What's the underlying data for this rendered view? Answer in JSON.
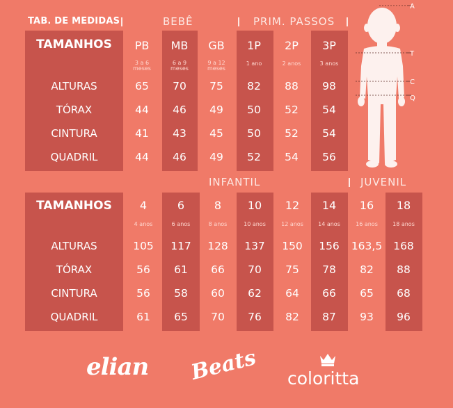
{
  "table1": {
    "title": "TAB. DE MEDIDAS",
    "group_labels": [
      "BEBÊ",
      "PRIM. PASSOS"
    ],
    "header_label": "TAMANHOS",
    "sizes": [
      "PB",
      "MB",
      "GB",
      "1P",
      "2P",
      "3P"
    ],
    "ages": [
      "3 a 6 meses",
      "6 a 9 meses",
      "9 a 12 meses",
      "1 ano",
      "2 anos",
      "3 anos"
    ],
    "row_labels": [
      "ALTURAS",
      "TÓRAX",
      "CINTURA",
      "QUADRIL"
    ],
    "rows": [
      [
        "65",
        "70",
        "75",
        "82",
        "88",
        "98"
      ],
      [
        "44",
        "46",
        "49",
        "50",
        "52",
        "54"
      ],
      [
        "41",
        "43",
        "45",
        "50",
        "52",
        "54"
      ],
      [
        "44",
        "46",
        "49",
        "52",
        "54",
        "56"
      ]
    ]
  },
  "table2": {
    "group_labels": [
      "INFANTIL",
      "JUVENIL"
    ],
    "header_label": "TAMANHOS",
    "sizes": [
      "4",
      "6",
      "8",
      "10",
      "12",
      "14",
      "16",
      "18"
    ],
    "ages": [
      "4 anos",
      "6 anos",
      "8 anos",
      "10 anos",
      "12 anos",
      "14 anos",
      "16 anos",
      "18 anos"
    ],
    "row_labels": [
      "ALTURAS",
      "TÓRAX",
      "CINTURA",
      "QUADRIL"
    ],
    "rows": [
      [
        "105",
        "117",
        "128",
        "137",
        "150",
        "156",
        "163,5",
        "168"
      ],
      [
        "56",
        "61",
        "66",
        "70",
        "75",
        "78",
        "82",
        "88"
      ],
      [
        "56",
        "58",
        "60",
        "62",
        "64",
        "66",
        "65",
        "68"
      ],
      [
        "61",
        "65",
        "70",
        "76",
        "82",
        "87",
        "93",
        "96"
      ]
    ]
  },
  "figure": {
    "markers": [
      "A",
      "T",
      "C",
      "Q"
    ]
  },
  "brands": [
    "elian",
    "Beats",
    "coloritta"
  ],
  "colors": {
    "background": "#F07A68",
    "shade": "#C7544C",
    "text": "#FFFFFF"
  }
}
